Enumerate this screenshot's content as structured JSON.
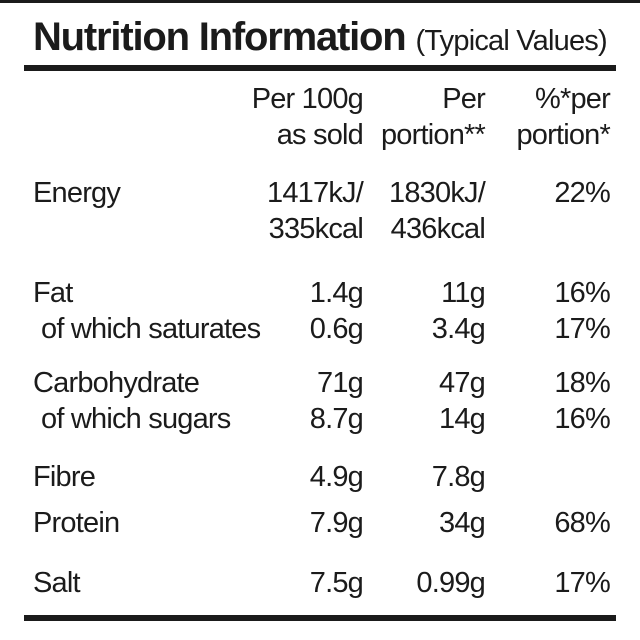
{
  "label": {
    "title": "Nutrition Information",
    "title_note": "(Typical Values)",
    "colors": {
      "text": "#1b1b1b",
      "background": "#ffffff",
      "rule": "#1b1b1b"
    },
    "columns": {
      "per100_line1": "Per 100g",
      "per100_line2": "as sold",
      "portion_line1": "Per",
      "portion_line2": "portion**",
      "percent_line1": "%*per",
      "percent_line2": "portion*"
    },
    "rows": [
      {
        "label": "Energy",
        "per100": "1417kJ/",
        "per100_line2": "335kcal",
        "portion": "1830kJ/",
        "portion_line2": "436kcal",
        "percent": "22%"
      },
      {
        "label": "Fat",
        "per100": "1.4g",
        "portion": "11g",
        "percent": "16%"
      },
      {
        "label": "of which saturates",
        "per100": "0.6g",
        "portion": "3.4g",
        "percent": "17%"
      },
      {
        "label": "Carbohydrate",
        "per100": "71g",
        "portion": "47g",
        "percent": "18%"
      },
      {
        "label": "of which sugars",
        "per100": "8.7g",
        "portion": "14g",
        "percent": "16%"
      },
      {
        "label": "Fibre",
        "per100": "4.9g",
        "portion": "7.8g",
        "percent": ""
      },
      {
        "label": "Protein",
        "per100": "7.9g",
        "portion": "34g",
        "percent": "68%"
      },
      {
        "label": "Salt",
        "per100": "7.5g",
        "portion": "0.99g",
        "percent": "17%"
      }
    ]
  }
}
